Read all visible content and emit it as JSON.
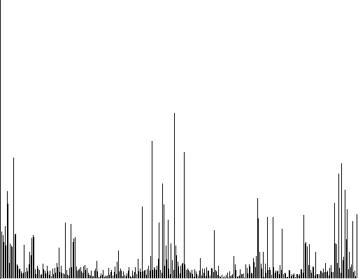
{
  "chart_data": {
    "type": "bar",
    "style": "spike",
    "title": "",
    "xlabel": "",
    "ylabel": "",
    "ylim": [
      0,
      400
    ],
    "grid": false,
    "legend": "none",
    "bar_color": "#000000",
    "background_color": "#ffffff",
    "axis_color": "#000000",
    "values": [
      67,
      62,
      52,
      75,
      47,
      125,
      107,
      22,
      50,
      47,
      45,
      173,
      63,
      64,
      20,
      18,
      13,
      14,
      10,
      7,
      8,
      48,
      9,
      15,
      10,
      20,
      38,
      33,
      58,
      62,
      59,
      13,
      6,
      18,
      14,
      12,
      5,
      6,
      21,
      13,
      11,
      7,
      18,
      10,
      5,
      11,
      3,
      14,
      6,
      15,
      8,
      22,
      16,
      44,
      9,
      18,
      8,
      7,
      6,
      80,
      12,
      5,
      4,
      15,
      78,
      16,
      52,
      57,
      59,
      17,
      11,
      12,
      14,
      16,
      10,
      8,
      17,
      19,
      12,
      15,
      8,
      5,
      4,
      11,
      3,
      3,
      11,
      14,
      25,
      10,
      2,
      3,
      7,
      5,
      12,
      2,
      4,
      3,
      4,
      15,
      5,
      9,
      12,
      4,
      9,
      17,
      6,
      24,
      40,
      10,
      14,
      11,
      3,
      10,
      5,
      3,
      7,
      11,
      16,
      3,
      2,
      11,
      4,
      9,
      16,
      6,
      28,
      10,
      14,
      9,
      103,
      10,
      11,
      12,
      5,
      13,
      18,
      11,
      32,
      197,
      12,
      16,
      14,
      12,
      18,
      28,
      80,
      12,
      8,
      136,
      106,
      18,
      47,
      27,
      84,
      14,
      6,
      50,
      26,
      12,
      237,
      47,
      33,
      24,
      17,
      7,
      18,
      21,
      22,
      181,
      20,
      12,
      14,
      12,
      10,
      8,
      12,
      6,
      2,
      13,
      10,
      6,
      4,
      11,
      29,
      4,
      14,
      8,
      14,
      3,
      16,
      11,
      11,
      4,
      15,
      14,
      9,
      69,
      12,
      10,
      5,
      18,
      3,
      2,
      5,
      1,
      3,
      1,
      5,
      8,
      1,
      10,
      3,
      4,
      6,
      32,
      20,
      12,
      2,
      3,
      4,
      13,
      6,
      6,
      7,
      1,
      20,
      15,
      7,
      20,
      17,
      8,
      7,
      29,
      23,
      16,
      32,
      115,
      86,
      38,
      21,
      14,
      38,
      2,
      21,
      8,
      88,
      12,
      16,
      12,
      5,
      88,
      16,
      8,
      11,
      10,
      11,
      6,
      19,
      12,
      71,
      6,
      8,
      7,
      2,
      2,
      12,
      11,
      3,
      6,
      5,
      7,
      2,
      6,
      6,
      4,
      6,
      13,
      13,
      8,
      91,
      50,
      52,
      46,
      19,
      49,
      12,
      8,
      17,
      16,
      4,
      38,
      6,
      6,
      6,
      11,
      10,
      8,
      14,
      9,
      22,
      9,
      11,
      4,
      15,
      19,
      9,
      9,
      108,
      50,
      49,
      22,
      150,
      15,
      8,
      165,
      26,
      31,
      127,
      56,
      99,
      13,
      38,
      16,
      20,
      82,
      9,
      11,
      3,
      92
    ]
  }
}
